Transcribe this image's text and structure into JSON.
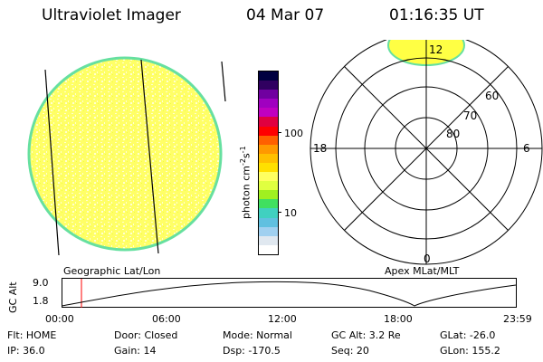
{
  "header": {
    "title": "Ultraviolet Imager",
    "date": "04 Mar 07",
    "time": "01:16:35 UT"
  },
  "colorbar": {
    "label": "photon cm",
    "label_exp": "-2",
    "label_s": "s",
    "label_s_exp": "-1",
    "tick_high": "100",
    "tick_low": "10",
    "colors": [
      "#000040",
      "#300060",
      "#7000a0",
      "#a000c0",
      "#c000c0",
      "#e00040",
      "#ff0000",
      "#ff6000",
      "#ff9900",
      "#ffc000",
      "#ffe000",
      "#ffff60",
      "#e0ff40",
      "#a0f020",
      "#40e060",
      "#40d0c0",
      "#60c0e0",
      "#a0d0f0",
      "#e0e8f0",
      "#ffffff"
    ]
  },
  "polar": {
    "labels": {
      "top": "12",
      "bottom": "0",
      "left": "18",
      "right": "6"
    },
    "rings": [
      "60",
      "70",
      "80"
    ]
  },
  "strip": {
    "left_label": "Geographic Lat/Lon",
    "right_label": "Apex MLat/MLT",
    "ylabel": "GC Alt",
    "ytick_top": "9.0",
    "ytick_bottom": "1.8",
    "xticks": [
      "00:00",
      "06:00",
      "12:00",
      "18:00",
      "23:59"
    ]
  },
  "status": {
    "row1": [
      "Flt: HOME",
      "Door: Closed",
      "Mode: Normal",
      "GC Alt: 3.2 Re",
      "GLat: -26.0"
    ],
    "row2": [
      "IP: 36.0",
      "Gain: 14",
      "Dsp: -170.5",
      "Seq: 20",
      "GLon: 155.2"
    ]
  },
  "colors": {
    "disk_fill": "#ffff66",
    "disk_speckle": "#ffffd0",
    "disk_edge": "#66e0a0",
    "marker_line": "#ff0000"
  }
}
